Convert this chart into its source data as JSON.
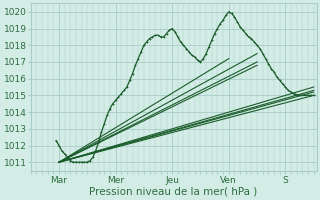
{
  "xlabel": "Pression niveau de la mer( hPa )",
  "ylim": [
    1010.5,
    1020.5
  ],
  "xlim": [
    0.0,
    5.05
  ],
  "yticks": [
    1011,
    1012,
    1013,
    1014,
    1015,
    1016,
    1017,
    1018,
    1019,
    1020
  ],
  "xtick_labels": [
    "Mar",
    "Mer",
    "Jeu",
    "Ven",
    "S"
  ],
  "xtick_pos": [
    0.5,
    1.5,
    2.5,
    3.5,
    4.5
  ],
  "bg_color": "#d4ece6",
  "grid_color": "#a8ccc7",
  "line_color": "#1a5c2a",
  "straight_lines": [
    [
      [
        0.5,
        5.0
      ],
      [
        1011.0,
        1015.0
      ]
    ],
    [
      [
        0.5,
        5.0
      ],
      [
        1011.0,
        1015.2
      ]
    ],
    [
      [
        0.5,
        5.0
      ],
      [
        1011.0,
        1015.3
      ]
    ],
    [
      [
        0.5,
        5.0
      ],
      [
        1011.0,
        1015.5
      ]
    ],
    [
      [
        0.5,
        3.5
      ],
      [
        1011.0,
        1017.2
      ]
    ],
    [
      [
        0.5,
        4.0
      ],
      [
        1011.0,
        1016.8
      ]
    ],
    [
      [
        0.5,
        4.0
      ],
      [
        1011.0,
        1017.0
      ]
    ],
    [
      [
        0.5,
        4.0
      ],
      [
        1011.0,
        1017.5
      ]
    ]
  ],
  "main_line": [
    [
      0.45,
      1012.3
    ],
    [
      0.5,
      1012.0
    ],
    [
      0.55,
      1011.7
    ],
    [
      0.6,
      1011.5
    ],
    [
      0.65,
      1011.3
    ],
    [
      0.7,
      1011.1
    ],
    [
      0.75,
      1011.0
    ],
    [
      0.8,
      1011.0
    ],
    [
      0.85,
      1011.0
    ],
    [
      0.9,
      1011.0
    ],
    [
      0.95,
      1011.0
    ],
    [
      1.0,
      1011.0
    ],
    [
      1.05,
      1011.1
    ],
    [
      1.1,
      1011.3
    ],
    [
      1.15,
      1011.7
    ],
    [
      1.2,
      1012.2
    ],
    [
      1.25,
      1012.8
    ],
    [
      1.3,
      1013.3
    ],
    [
      1.35,
      1013.8
    ],
    [
      1.4,
      1014.2
    ],
    [
      1.45,
      1014.5
    ],
    [
      1.5,
      1014.7
    ],
    [
      1.55,
      1014.9
    ],
    [
      1.6,
      1015.1
    ],
    [
      1.65,
      1015.3
    ],
    [
      1.7,
      1015.5
    ],
    [
      1.75,
      1015.9
    ],
    [
      1.8,
      1016.3
    ],
    [
      1.85,
      1016.8
    ],
    [
      1.9,
      1017.2
    ],
    [
      1.95,
      1017.6
    ],
    [
      2.0,
      1018.0
    ],
    [
      2.05,
      1018.2
    ],
    [
      2.1,
      1018.4
    ],
    [
      2.15,
      1018.5
    ],
    [
      2.2,
      1018.6
    ],
    [
      2.25,
      1018.6
    ],
    [
      2.3,
      1018.5
    ],
    [
      2.35,
      1018.5
    ],
    [
      2.4,
      1018.7
    ],
    [
      2.45,
      1018.9
    ],
    [
      2.5,
      1019.0
    ],
    [
      2.55,
      1018.8
    ],
    [
      2.6,
      1018.5
    ],
    [
      2.65,
      1018.2
    ],
    [
      2.7,
      1018.0
    ],
    [
      2.75,
      1017.8
    ],
    [
      2.8,
      1017.6
    ],
    [
      2.85,
      1017.4
    ],
    [
      2.9,
      1017.3
    ],
    [
      2.95,
      1017.1
    ],
    [
      3.0,
      1017.0
    ],
    [
      3.05,
      1017.2
    ],
    [
      3.1,
      1017.5
    ],
    [
      3.15,
      1017.9
    ],
    [
      3.2,
      1018.3
    ],
    [
      3.25,
      1018.7
    ],
    [
      3.3,
      1019.0
    ],
    [
      3.35,
      1019.3
    ],
    [
      3.4,
      1019.5
    ],
    [
      3.45,
      1019.8
    ],
    [
      3.5,
      1020.0
    ],
    [
      3.55,
      1019.9
    ],
    [
      3.6,
      1019.7
    ],
    [
      3.65,
      1019.4
    ],
    [
      3.7,
      1019.1
    ],
    [
      3.75,
      1018.9
    ],
    [
      3.8,
      1018.7
    ],
    [
      3.85,
      1018.5
    ],
    [
      3.9,
      1018.4
    ],
    [
      3.95,
      1018.2
    ],
    [
      4.0,
      1018.0
    ],
    [
      4.05,
      1017.8
    ],
    [
      4.1,
      1017.5
    ],
    [
      4.15,
      1017.2
    ],
    [
      4.2,
      1016.9
    ],
    [
      4.25,
      1016.6
    ],
    [
      4.3,
      1016.4
    ],
    [
      4.35,
      1016.1
    ],
    [
      4.4,
      1015.9
    ],
    [
      4.45,
      1015.7
    ],
    [
      4.5,
      1015.5
    ],
    [
      4.55,
      1015.3
    ],
    [
      4.6,
      1015.2
    ],
    [
      4.65,
      1015.1
    ],
    [
      4.7,
      1015.05
    ],
    [
      4.75,
      1015.0
    ],
    [
      4.8,
      1015.0
    ],
    [
      4.85,
      1015.0
    ],
    [
      4.9,
      1015.0
    ],
    [
      4.95,
      1015.0
    ],
    [
      5.0,
      1015.0
    ]
  ]
}
